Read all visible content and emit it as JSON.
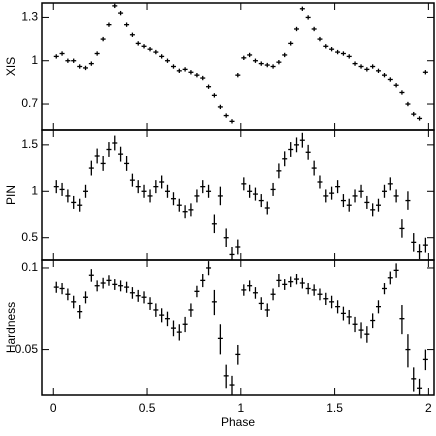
{
  "chart_data": [
    {
      "type": "errorbar",
      "ylabel": "XIS",
      "log": false,
      "xlim": [
        -0.06,
        2.03
      ],
      "xticks": [
        0,
        0.5,
        1,
        1.5,
        2
      ],
      "ylim": [
        0.52,
        1.4
      ],
      "yticks": [
        0.7,
        1.0,
        1.3
      ],
      "x": [
        0.016,
        0.047,
        0.078,
        0.109,
        0.141,
        0.172,
        0.203,
        0.234,
        0.266,
        0.297,
        0.328,
        0.359,
        0.391,
        0.422,
        0.453,
        0.484,
        0.516,
        0.547,
        0.578,
        0.609,
        0.641,
        0.672,
        0.703,
        0.734,
        0.766,
        0.797,
        0.828,
        0.859,
        0.891,
        0.922,
        0.953,
        0.984,
        1.016,
        1.047,
        1.078,
        1.109,
        1.141,
        1.172,
        1.203,
        1.234,
        1.266,
        1.297,
        1.328,
        1.359,
        1.391,
        1.422,
        1.453,
        1.484,
        1.516,
        1.547,
        1.578,
        1.609,
        1.641,
        1.672,
        1.703,
        1.734,
        1.766,
        1.797,
        1.828,
        1.859,
        1.891,
        1.922,
        1.953,
        1.984
      ],
      "values": [
        1.03,
        1.05,
        1.0,
        1.0,
        0.96,
        0.95,
        0.98,
        1.05,
        1.15,
        1.25,
        1.38,
        1.33,
        1.25,
        1.18,
        1.12,
        1.1,
        1.08,
        1.06,
        1.03,
        1.0,
        0.96,
        0.93,
        0.94,
        0.92,
        0.9,
        0.88,
        0.82,
        0.76,
        0.68,
        0.62,
        0.58,
        0.9,
        1.02,
        1.04,
        1.0,
        0.98,
        0.97,
        0.96,
        0.99,
        1.04,
        1.12,
        1.22,
        1.36,
        1.3,
        1.22,
        1.15,
        1.1,
        1.08,
        1.06,
        1.05,
        1.03,
        0.98,
        0.96,
        0.94,
        0.96,
        0.93,
        0.9,
        0.87,
        0.83,
        0.78,
        0.7,
        0.63,
        0.6,
        0.92
      ],
      "errors": [
        0.015,
        0.015,
        0.015,
        0.015,
        0.015,
        0.015,
        0.015,
        0.015,
        0.015,
        0.015,
        0.015,
        0.015,
        0.015,
        0.015,
        0.015,
        0.015,
        0.015,
        0.015,
        0.015,
        0.015,
        0.015,
        0.015,
        0.015,
        0.015,
        0.015,
        0.015,
        0.015,
        0.015,
        0.015,
        0.015,
        0.015,
        0.015,
        0.015,
        0.015,
        0.015,
        0.015,
        0.015,
        0.015,
        0.015,
        0.015,
        0.015,
        0.015,
        0.015,
        0.015,
        0.015,
        0.015,
        0.015,
        0.015,
        0.015,
        0.015,
        0.015,
        0.015,
        0.015,
        0.015,
        0.015,
        0.015,
        0.015,
        0.015,
        0.015,
        0.015,
        0.015,
        0.015,
        0.015,
        0.015
      ]
    },
    {
      "type": "errorbar",
      "ylabel": "PIN",
      "log": false,
      "xlim": [
        -0.06,
        2.03
      ],
      "xticks": [
        0,
        0.5,
        1,
        1.5,
        2
      ],
      "ylim": [
        0.26,
        1.66
      ],
      "yticks": [
        0.5,
        1.0,
        1.5
      ],
      "x": [
        0.016,
        0.047,
        0.078,
        0.109,
        0.141,
        0.172,
        0.203,
        0.234,
        0.266,
        0.297,
        0.328,
        0.359,
        0.391,
        0.422,
        0.453,
        0.484,
        0.516,
        0.547,
        0.578,
        0.609,
        0.641,
        0.672,
        0.703,
        0.734,
        0.766,
        0.797,
        0.828,
        0.859,
        0.891,
        0.922,
        0.953,
        0.984,
        1.016,
        1.047,
        1.078,
        1.109,
        1.141,
        1.172,
        1.203,
        1.234,
        1.266,
        1.297,
        1.328,
        1.359,
        1.391,
        1.422,
        1.453,
        1.484,
        1.516,
        1.547,
        1.578,
        1.609,
        1.641,
        1.672,
        1.703,
        1.734,
        1.766,
        1.797,
        1.828,
        1.859,
        1.891,
        1.922,
        1.953,
        1.984
      ],
      "values": [
        1.05,
        1.02,
        0.95,
        0.88,
        0.85,
        1.0,
        1.25,
        1.38,
        1.3,
        1.45,
        1.52,
        1.4,
        1.3,
        1.12,
        1.05,
        1.0,
        0.95,
        1.05,
        1.1,
        1.0,
        0.92,
        0.85,
        0.78,
        0.8,
        0.95,
        1.05,
        1.0,
        0.65,
        0.95,
        0.5,
        0.32,
        0.4,
        1.08,
        1.0,
        0.97,
        0.9,
        0.82,
        1.02,
        1.22,
        1.35,
        1.45,
        1.5,
        1.55,
        1.42,
        1.25,
        1.1,
        0.95,
        0.98,
        1.05,
        0.9,
        0.85,
        0.95,
        1.0,
        0.88,
        0.8,
        0.85,
        1.0,
        1.08,
        0.95,
        0.6,
        0.9,
        0.45,
        0.35,
        0.42
      ],
      "errors": [
        0.07,
        0.07,
        0.07,
        0.07,
        0.07,
        0.07,
        0.08,
        0.08,
        0.08,
        0.08,
        0.08,
        0.08,
        0.08,
        0.07,
        0.07,
        0.07,
        0.07,
        0.07,
        0.07,
        0.07,
        0.07,
        0.07,
        0.07,
        0.07,
        0.07,
        0.07,
        0.07,
        0.1,
        0.1,
        0.1,
        0.08,
        0.08,
        0.07,
        0.07,
        0.07,
        0.07,
        0.07,
        0.07,
        0.08,
        0.08,
        0.08,
        0.08,
        0.08,
        0.08,
        0.08,
        0.07,
        0.07,
        0.07,
        0.07,
        0.07,
        0.07,
        0.07,
        0.07,
        0.07,
        0.07,
        0.07,
        0.07,
        0.07,
        0.07,
        0.1,
        0.1,
        0.1,
        0.08,
        0.08
      ]
    },
    {
      "type": "errorbar",
      "ylabel": "Hardness",
      "xlabel": "Phase",
      "log": true,
      "xlim": [
        -0.06,
        2.03
      ],
      "xticks": [
        0,
        0.5,
        1,
        1.5,
        2
      ],
      "ylim": [
        0.034,
        0.107
      ],
      "yticks": [
        0.05,
        0.1
      ],
      "x": [
        0.016,
        0.047,
        0.078,
        0.109,
        0.141,
        0.172,
        0.203,
        0.234,
        0.266,
        0.297,
        0.328,
        0.359,
        0.391,
        0.422,
        0.453,
        0.484,
        0.516,
        0.547,
        0.578,
        0.609,
        0.641,
        0.672,
        0.703,
        0.734,
        0.766,
        0.797,
        0.828,
        0.859,
        0.891,
        0.922,
        0.953,
        0.984,
        1.016,
        1.047,
        1.078,
        1.109,
        1.141,
        1.172,
        1.203,
        1.234,
        1.266,
        1.297,
        1.328,
        1.359,
        1.391,
        1.422,
        1.453,
        1.484,
        1.516,
        1.547,
        1.578,
        1.609,
        1.641,
        1.672,
        1.703,
        1.734,
        1.766,
        1.797,
        1.828,
        1.859,
        1.891,
        1.922,
        1.953,
        1.984
      ],
      "values": [
        0.085,
        0.084,
        0.08,
        0.075,
        0.069,
        0.078,
        0.094,
        0.086,
        0.088,
        0.09,
        0.087,
        0.086,
        0.085,
        0.081,
        0.079,
        0.078,
        0.074,
        0.07,
        0.067,
        0.065,
        0.06,
        0.058,
        0.062,
        0.07,
        0.082,
        0.09,
        0.1,
        0.075,
        0.055,
        0.04,
        0.037,
        0.048,
        0.083,
        0.086,
        0.081,
        0.074,
        0.07,
        0.08,
        0.09,
        0.087,
        0.089,
        0.091,
        0.088,
        0.084,
        0.083,
        0.08,
        0.077,
        0.075,
        0.072,
        0.068,
        0.066,
        0.062,
        0.059,
        0.057,
        0.064,
        0.072,
        0.084,
        0.092,
        0.098,
        0.065,
        0.05,
        0.039,
        0.036,
        0.046
      ],
      "errors": [
        0.004,
        0.004,
        0.004,
        0.004,
        0.004,
        0.004,
        0.005,
        0.004,
        0.004,
        0.004,
        0.004,
        0.004,
        0.004,
        0.004,
        0.004,
        0.004,
        0.004,
        0.004,
        0.004,
        0.004,
        0.004,
        0.004,
        0.004,
        0.004,
        0.004,
        0.005,
        0.006,
        0.008,
        0.007,
        0.004,
        0.003,
        0.004,
        0.004,
        0.004,
        0.004,
        0.004,
        0.004,
        0.004,
        0.005,
        0.004,
        0.004,
        0.004,
        0.004,
        0.004,
        0.004,
        0.004,
        0.004,
        0.004,
        0.004,
        0.004,
        0.004,
        0.004,
        0.004,
        0.004,
        0.004,
        0.004,
        0.004,
        0.005,
        0.006,
        0.008,
        0.007,
        0.004,
        0.003,
        0.004
      ]
    }
  ]
}
